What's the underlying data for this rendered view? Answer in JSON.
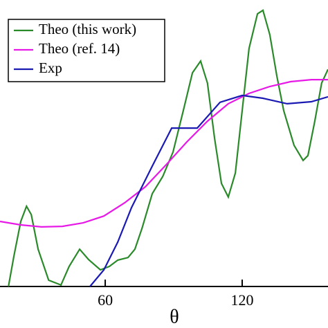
{
  "chart_data": {
    "type": "line",
    "xlabel": "θ",
    "xlim": [
      13.9,
      157.6
    ],
    "ylim": [
      0,
      100
    ],
    "xticks": [
      60,
      120
    ],
    "legend": "upper left",
    "series": [
      {
        "name": "Theo (this work)",
        "color": "#2a8a2a",
        "x": [
          17.6,
          20,
          23,
          25.5,
          27.6,
          30.6,
          35.2,
          40.6,
          44.2,
          48.8,
          52.7,
          57.9,
          61.8,
          65.5,
          70,
          73,
          76.1,
          80.6,
          85.2,
          89.7,
          94.2,
          98.2,
          101.8,
          104.8,
          107.9,
          110.9,
          113.9,
          117,
          120,
          123,
          126.7,
          129.1,
          132.1,
          135.2,
          138.2,
          142.7,
          146.7,
          148.8,
          151.8,
          154.8,
          157.6
        ],
        "values": [
          0,
          10.6,
          22.7,
          28,
          25.1,
          13,
          2.2,
          0.5,
          7,
          13,
          9.4,
          5.8,
          7,
          9.2,
          10.1,
          13,
          20.3,
          32.4,
          38.4,
          46.9,
          61.4,
          74.6,
          78.7,
          71,
          51.7,
          36,
          31.2,
          39.6,
          61.4,
          83.1,
          95.2,
          96.4,
          87.9,
          73.4,
          61.4,
          49.3,
          44,
          45.7,
          57.7,
          71,
          75.8
        ]
      },
      {
        "name": "Theo (ref. 14)",
        "color": "#e619e6",
        "x": [
          13.9,
          23,
          32.1,
          41.2,
          50.3,
          59.4,
          68.5,
          77.6,
          86.7,
          95.8,
          104.8,
          113.9,
          123,
          132.1,
          141.2,
          150.3,
          157.6
        ],
        "values": [
          22.7,
          21.5,
          20.8,
          21,
          22.2,
          24.6,
          29.2,
          34.8,
          42.5,
          50.5,
          57.7,
          63.8,
          67.4,
          69.8,
          71.5,
          72.2,
          72.2
        ]
      },
      {
        "name": "Exp",
        "color": "#1a1ab3",
        "x": [
          53.3,
          59.4,
          65.5,
          71.5,
          80.6,
          89.1,
          100.3,
          110.3,
          120,
          129.1,
          139.7,
          150.3,
          157.6
        ],
        "values": [
          0,
          5.8,
          15.5,
          27.5,
          42,
          55.3,
          55.3,
          64.3,
          66.7,
          65.7,
          63.8,
          64.5,
          66.2
        ]
      }
    ]
  }
}
